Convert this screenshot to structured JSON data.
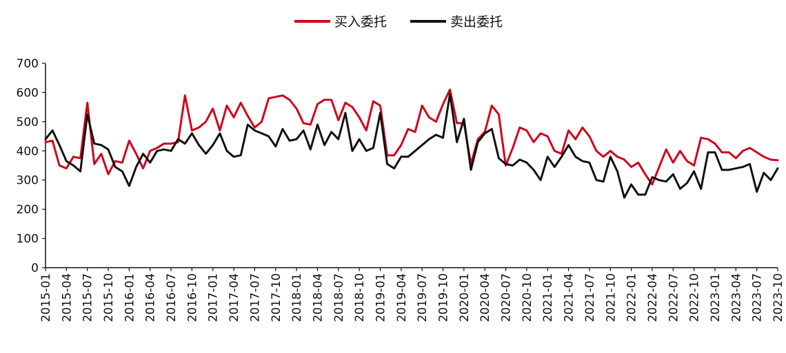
{
  "chart_data": {
    "type": "line",
    "title": "",
    "xlabel": "",
    "ylabel": "",
    "ylim": [
      0,
      700
    ],
    "yticks": [
      0,
      100,
      200,
      300,
      400,
      500,
      600,
      700
    ],
    "x_tick_labels": [
      "2015-01",
      "2015-04",
      "2015-07",
      "2015-10",
      "2016-01",
      "2016-04",
      "2016-07",
      "2016-10",
      "2017-01",
      "2017-04",
      "2017-07",
      "2017-10",
      "2018-01",
      "2018-04",
      "2018-07",
      "2018-10",
      "2019-01",
      "2019-04",
      "2019-07",
      "2019-10",
      "2020-01",
      "2020-04",
      "2020-07",
      "2020-10",
      "2021-01",
      "2021-04",
      "2021-07",
      "2021-10",
      "2022-01",
      "2022-04",
      "2022-07",
      "2022-10",
      "2023-01",
      "2023-04",
      "2023-07",
      "2023-10"
    ],
    "x_start": "2015-01",
    "grid": false,
    "legend_position": "top-center",
    "series": [
      {
        "name": "买入委托",
        "color": "#d0021b",
        "values": [
          430,
          435,
          350,
          340,
          380,
          375,
          565,
          355,
          390,
          320,
          365,
          360,
          435,
          390,
          340,
          400,
          410,
          425,
          425,
          430,
          590,
          470,
          480,
          500,
          545,
          470,
          555,
          515,
          565,
          520,
          480,
          500,
          580,
          585,
          590,
          575,
          545,
          495,
          490,
          560,
          575,
          575,
          505,
          565,
          550,
          515,
          470,
          570,
          555,
          385,
          385,
          420,
          475,
          465,
          555,
          515,
          500,
          560,
          610,
          495,
          495,
          355,
          440,
          465,
          555,
          525,
          350,
          410,
          480,
          470,
          430,
          460,
          450,
          400,
          390,
          470,
          440,
          480,
          450,
          400,
          380,
          400,
          380,
          370,
          345,
          360,
          320,
          285,
          345,
          405,
          360,
          400,
          365,
          350,
          445,
          440,
          425,
          395,
          395,
          375,
          400,
          410,
          395,
          380,
          370,
          368
        ]
      },
      {
        "name": "卖出委托",
        "color": "#111111",
        "values": [
          440,
          470,
          420,
          365,
          350,
          330,
          525,
          425,
          420,
          405,
          345,
          330,
          280,
          345,
          390,
          360,
          400,
          405,
          400,
          440,
          425,
          460,
          420,
          390,
          420,
          460,
          400,
          380,
          385,
          490,
          470,
          460,
          450,
          415,
          475,
          435,
          440,
          470,
          405,
          490,
          420,
          465,
          440,
          530,
          400,
          440,
          400,
          410,
          530,
          355,
          340,
          380,
          380,
          400,
          420,
          440,
          455,
          445,
          595,
          430,
          510,
          335,
          430,
          460,
          475,
          375,
          355,
          350,
          370,
          360,
          335,
          300,
          380,
          345,
          380,
          420,
          380,
          365,
          360,
          300,
          295,
          380,
          330,
          240,
          285,
          250,
          250,
          310,
          300,
          295,
          320,
          270,
          290,
          330,
          270,
          395,
          395,
          335,
          335,
          340,
          345,
          355,
          260,
          325,
          300,
          340
        ]
      }
    ]
  }
}
